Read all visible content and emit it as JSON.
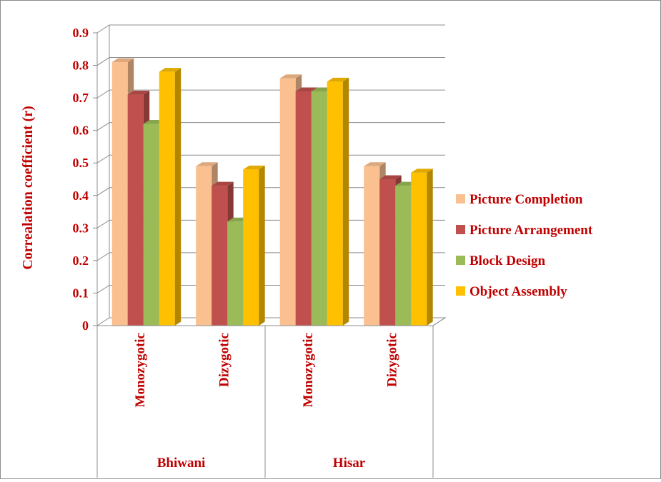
{
  "chart_data": {
    "type": "bar",
    "style": "3d-clustered-column",
    "title": "",
    "ylabel": "Correalation coefficient (r)",
    "xlabel": "",
    "ylim": [
      0,
      0.9
    ],
    "yticks": [
      "0",
      "0.1",
      "0.2",
      "0.3",
      "0.4",
      "0.5",
      "0.6",
      "0.7",
      "0.8",
      "0.9"
    ],
    "groups": [
      {
        "name": "Bhiwani",
        "categories": [
          "Monozygotic",
          "Dizygotic"
        ]
      },
      {
        "name": "Hisar",
        "categories": [
          "Monozygotic",
          "Dizygotic"
        ]
      }
    ],
    "categories": [
      "Monozygotic",
      "Dizygotic",
      "Monozygotic",
      "Dizygotic"
    ],
    "series": [
      {
        "name": "Picture Completion",
        "color": "#FAC090",
        "values": [
          0.81,
          0.49,
          0.76,
          0.49
        ]
      },
      {
        "name": "Picture Arrangement",
        "color": "#C0504D",
        "values": [
          0.71,
          0.43,
          0.72,
          0.45
        ]
      },
      {
        "name": "Block Design",
        "color": "#9BBB59",
        "values": [
          0.62,
          0.32,
          0.72,
          0.43
        ]
      },
      {
        "name": "Object Assembly",
        "color": "#FFC000",
        "values": [
          0.78,
          0.48,
          0.75,
          0.47
        ]
      }
    ],
    "grid": true,
    "legend": "right",
    "text_color": "#C00000"
  }
}
